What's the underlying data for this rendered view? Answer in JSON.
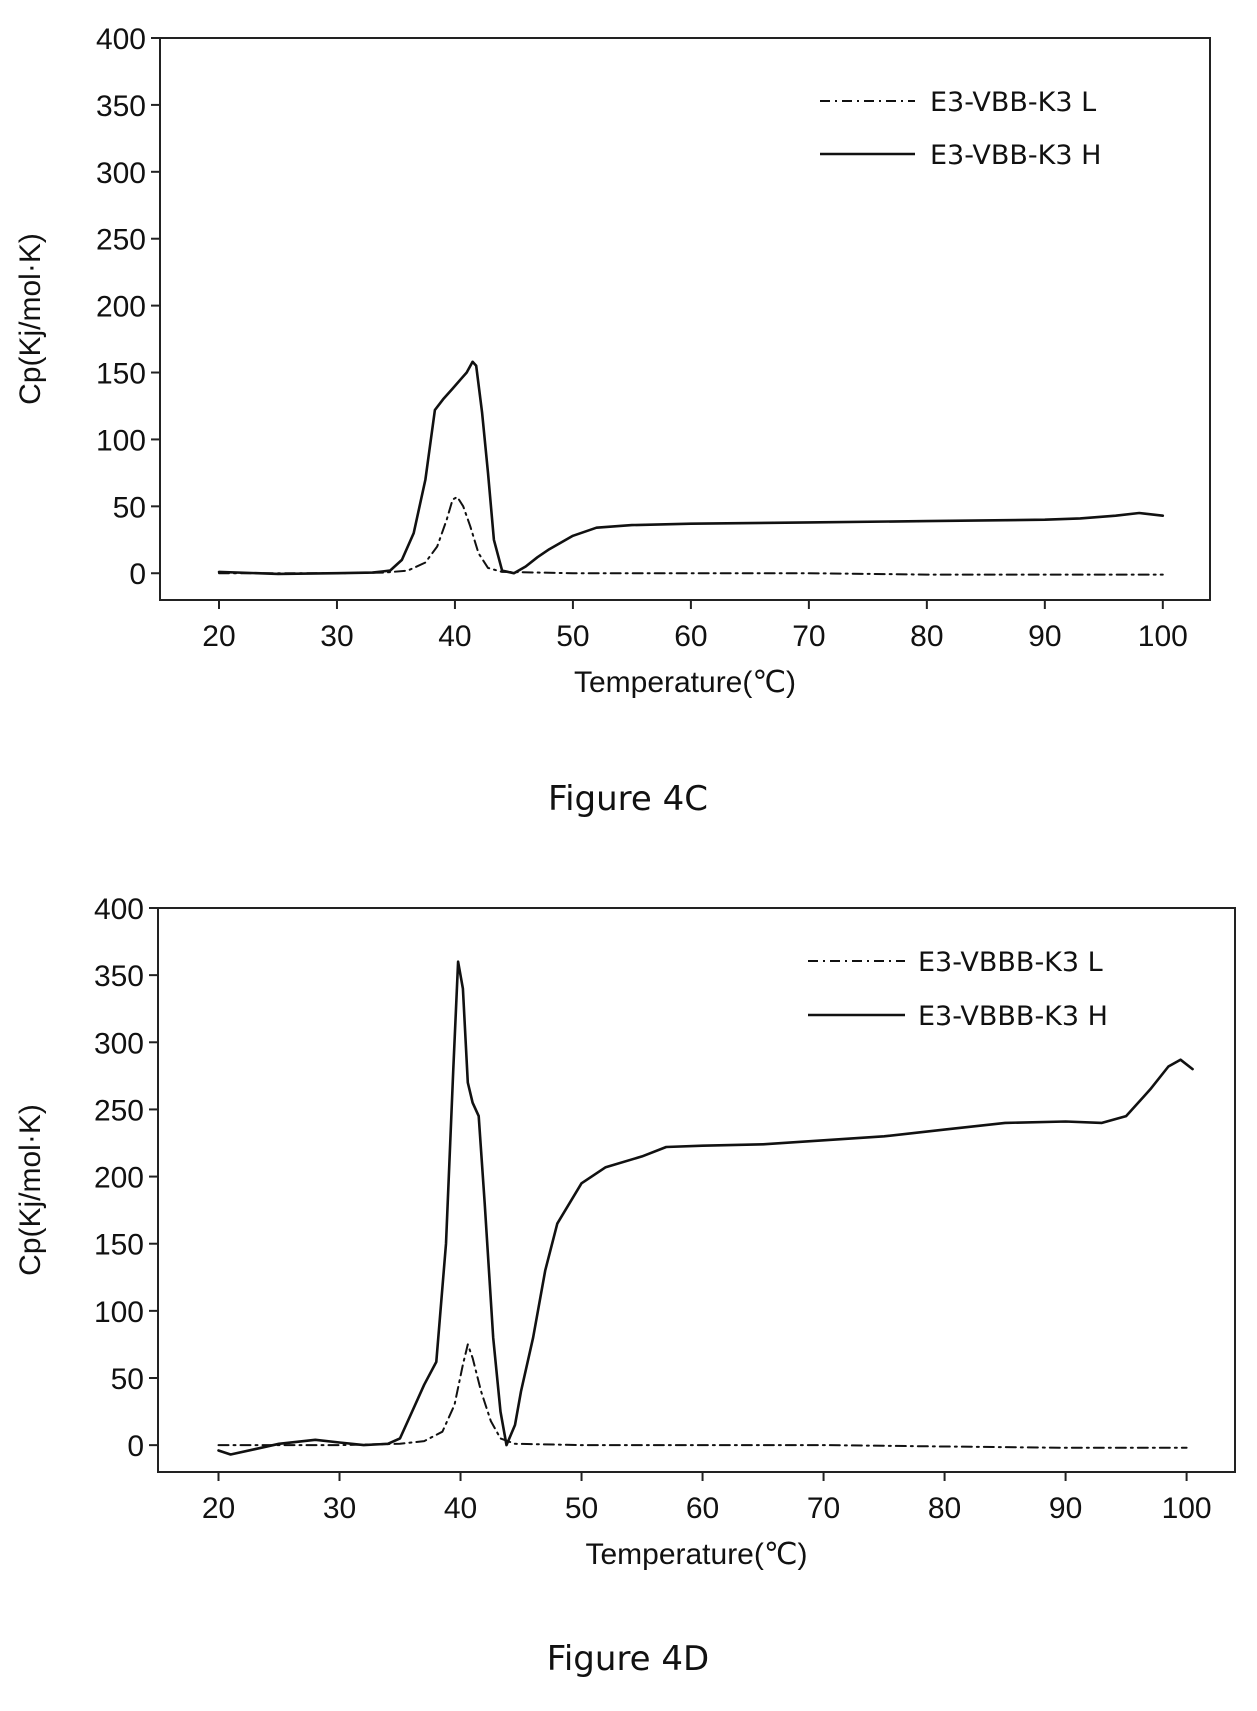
{
  "chart_data": [
    {
      "type": "line",
      "caption": "Figure 4C",
      "xlabel": "Temperature(℃)",
      "ylabel": "Cp(Kj/mol·K)",
      "xlim": [
        15,
        104
      ],
      "ylim": [
        -20,
        400
      ],
      "xticks": [
        20,
        30,
        40,
        50,
        60,
        70,
        80,
        90,
        100
      ],
      "yticks": [
        0,
        50,
        100,
        150,
        200,
        250,
        300,
        350,
        400
      ],
      "grid": false,
      "legend_position": "top-right",
      "series": [
        {
          "name": "E3-VBB-K3 L",
          "style": "dash-dot",
          "points": [
            [
              20,
              0
            ],
            [
              30,
              0
            ],
            [
              34,
              0.5
            ],
            [
              36,
              2
            ],
            [
              37.5,
              8
            ],
            [
              38.5,
              20
            ],
            [
              39.3,
              40
            ],
            [
              39.8,
              55
            ],
            [
              40.2,
              57
            ],
            [
              40.7,
              50
            ],
            [
              41.3,
              35
            ],
            [
              42,
              15
            ],
            [
              42.8,
              4
            ],
            [
              44,
              1
            ],
            [
              50,
              0
            ],
            [
              60,
              0
            ],
            [
              70,
              0
            ],
            [
              80,
              -1
            ],
            [
              90,
              -1
            ],
            [
              100,
              -1
            ]
          ]
        },
        {
          "name": "E3-VBB-K3 H",
          "style": "solid",
          "points": [
            [
              20,
              1
            ],
            [
              25,
              -0.5
            ],
            [
              30,
              0
            ],
            [
              33,
              0.5
            ],
            [
              34.5,
              2
            ],
            [
              35.5,
              10
            ],
            [
              36.5,
              30
            ],
            [
              37.5,
              70
            ],
            [
              38.3,
              122
            ],
            [
              39,
              130
            ],
            [
              39.8,
              138
            ],
            [
              40.5,
              145
            ],
            [
              41,
              150
            ],
            [
              41.5,
              158
            ],
            [
              41.8,
              155
            ],
            [
              42.3,
              120
            ],
            [
              42.8,
              75
            ],
            [
              43.3,
              25
            ],
            [
              44,
              2
            ],
            [
              45,
              0
            ],
            [
              46,
              5
            ],
            [
              47,
              12
            ],
            [
              48,
              18
            ],
            [
              50,
              28
            ],
            [
              52,
              34
            ],
            [
              55,
              36
            ],
            [
              60,
              37
            ],
            [
              70,
              38
            ],
            [
              80,
              39
            ],
            [
              90,
              40
            ],
            [
              93,
              41
            ],
            [
              96,
              43
            ],
            [
              98,
              45
            ],
            [
              100,
              43
            ]
          ]
        }
      ]
    },
    {
      "type": "line",
      "caption": "Figure 4D",
      "xlabel": "Temperature(℃)",
      "ylabel": "Cp(Kj/mol·K)",
      "xlim": [
        15,
        104
      ],
      "ylim": [
        -20,
        400
      ],
      "xticks": [
        20,
        30,
        40,
        50,
        60,
        70,
        80,
        90,
        100
      ],
      "yticks": [
        0,
        50,
        100,
        150,
        200,
        250,
        300,
        350,
        400
      ],
      "grid": false,
      "legend_position": "top-right",
      "series": [
        {
          "name": "E3-VBBB-K3 L",
          "style": "dash-dot",
          "points": [
            [
              20,
              0
            ],
            [
              30,
              0
            ],
            [
              35,
              1
            ],
            [
              37,
              3
            ],
            [
              38.5,
              10
            ],
            [
              39.5,
              30
            ],
            [
              40.2,
              60
            ],
            [
              40.6,
              75
            ],
            [
              41,
              65
            ],
            [
              41.7,
              40
            ],
            [
              42.5,
              18
            ],
            [
              43.3,
              5
            ],
            [
              44.5,
              1
            ],
            [
              50,
              0
            ],
            [
              60,
              0
            ],
            [
              70,
              0
            ],
            [
              80,
              -1
            ],
            [
              90,
              -2
            ],
            [
              100,
              -2
            ]
          ]
        },
        {
          "name": "E3-VBBB-K3 H",
          "style": "solid",
          "points": [
            [
              20,
              -4
            ],
            [
              21,
              -7
            ],
            [
              23,
              -3
            ],
            [
              25,
              1
            ],
            [
              28,
              4
            ],
            [
              30,
              2
            ],
            [
              32,
              0
            ],
            [
              34,
              1
            ],
            [
              35,
              5
            ],
            [
              36,
              25
            ],
            [
              37,
              45
            ],
            [
              38,
              62
            ],
            [
              38.8,
              150
            ],
            [
              39.4,
              280
            ],
            [
              39.8,
              360
            ],
            [
              40.2,
              340
            ],
            [
              40.6,
              270
            ],
            [
              41,
              255
            ],
            [
              41.5,
              245
            ],
            [
              42,
              180
            ],
            [
              42.7,
              80
            ],
            [
              43.3,
              25
            ],
            [
              43.8,
              0
            ],
            [
              44.5,
              15
            ],
            [
              45,
              40
            ],
            [
              46,
              80
            ],
            [
              47,
              130
            ],
            [
              48,
              165
            ],
            [
              50,
              195
            ],
            [
              52,
              207
            ],
            [
              55,
              215
            ],
            [
              57,
              222
            ],
            [
              60,
              223
            ],
            [
              65,
              224
            ],
            [
              70,
              227
            ],
            [
              75,
              230
            ],
            [
              80,
              235
            ],
            [
              85,
              240
            ],
            [
              90,
              241
            ],
            [
              93,
              240
            ],
            [
              95,
              245
            ],
            [
              97,
              265
            ],
            [
              98.5,
              282
            ],
            [
              99.5,
              287
            ],
            [
              100.5,
              280
            ]
          ]
        }
      ]
    }
  ]
}
